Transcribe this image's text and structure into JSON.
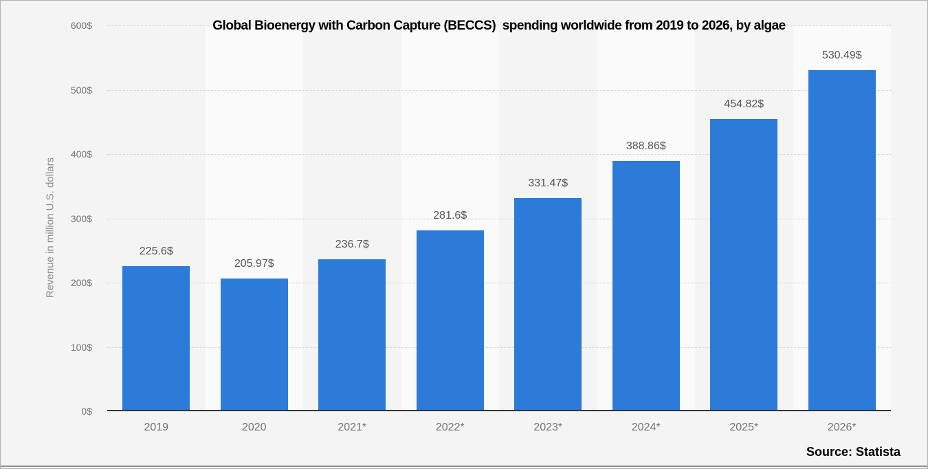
{
  "chart_data": {
    "type": "bar",
    "title": "Global Bioenergy with Carbon Capture (BECCS)  spending worldwide from 2019 to 2026, by algae",
    "categories": [
      "2019",
      "2020",
      "2021*",
      "2022*",
      "2023*",
      "2024*",
      "2025*",
      "2026*"
    ],
    "values": [
      225.6,
      205.97,
      236.7,
      281.6,
      331.47,
      388.86,
      454.82,
      530.49
    ],
    "value_labels": [
      "225.6$",
      "205.97$",
      "236.7$",
      "281.6$",
      "331.47$",
      "388.86$",
      "454.82$",
      "530.49$"
    ],
    "xlabel": "",
    "ylabel": "Revenue in million U.S. dollars",
    "ylim": [
      0,
      600
    ],
    "ytick_interval": 100,
    "ytick_labels": [
      "0$",
      "100$",
      "200$",
      "300$",
      "400$",
      "500$",
      "600$"
    ],
    "grid": "horizontal-dotted",
    "legend_position": "none",
    "bar_color": "#2c7bd9"
  },
  "source": {
    "label": "Source: Statista"
  },
  "colors": {
    "bar": "#2c7bd9",
    "background": "#f4f4f4",
    "band_alt": "#fafafa",
    "gridline": "#cdcdcd",
    "axis_line": "#333333",
    "tick_text": "#737373",
    "value_text": "#545454",
    "axis_title_text": "#8c8c8c",
    "frame_border": "#b0b0b0"
  }
}
